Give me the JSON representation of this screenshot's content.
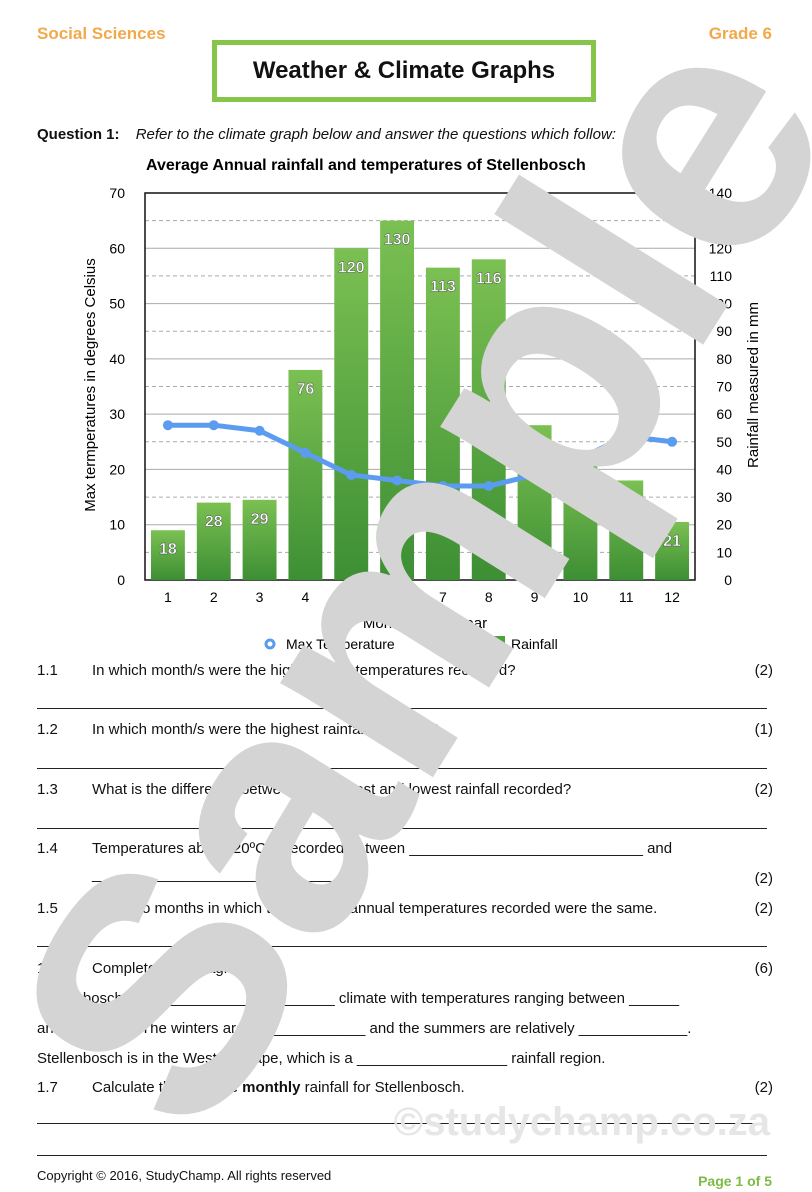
{
  "header": {
    "subject": "Social Sciences",
    "grade": "Grade 6",
    "title": "Weather & Climate Graphs"
  },
  "question1": {
    "label": "Question 1:",
    "instruction": "Refer to the climate graph below and answer the questions which follow:"
  },
  "chart_data": {
    "type": "bar+line",
    "title": "Average Annual rainfall and temperatures of Stellenbosch",
    "xlabel": "Months of the year",
    "ylabel_left": "Max termperatures  in degrees Celsius",
    "ylabel_right": "Rainfall measured in mm",
    "categories": [
      "1",
      "2",
      "3",
      "4",
      "5",
      "6",
      "7",
      "8",
      "9",
      "10",
      "11",
      "12"
    ],
    "ylim_left": [
      0,
      70
    ],
    "ylim_right": [
      0,
      140
    ],
    "left_ticks": [
      0,
      10,
      20,
      30,
      40,
      50,
      60,
      70
    ],
    "right_ticks": [
      0,
      10,
      20,
      30,
      40,
      50,
      60,
      70,
      80,
      90,
      100,
      110,
      120,
      130,
      140
    ],
    "grid": true,
    "legend_position": "bottom",
    "series": [
      {
        "name": "Max Temperature",
        "type": "line",
        "axis": "left",
        "color": "#5b9cf0",
        "values": [
          28,
          28,
          27,
          23,
          19,
          18,
          17,
          17,
          19,
          22,
          26,
          25
        ]
      },
      {
        "name": "Rainfall",
        "type": "bar",
        "axis": "right",
        "color": "#4ea23c",
        "values": [
          18,
          28,
          29,
          76,
          120,
          130,
          113,
          116,
          56,
          42,
          36,
          21
        ]
      }
    ]
  },
  "questions": [
    {
      "num": "1.1",
      "text": "In which month/s were the highest max temperatures recorded?",
      "marks": "(2)"
    },
    {
      "num": "1.2",
      "text": "In which month/s were the highest rainfall recorded?",
      "marks": "(1)"
    },
    {
      "num": "1.3",
      "text": "What is the difference between the highest and lowest rainfall recorded?",
      "marks": "(2)"
    },
    {
      "num": "1.4",
      "text": "Temperatures above 20ºC is recorded between ____________________________ and",
      "marks": "(2)",
      "cont": "______________________________"
    },
    {
      "num": "1.5",
      "text": "Give two months in which the average annual temperatures recorded were the same.",
      "marks": "(2)"
    },
    {
      "num": "1.6",
      "text": "Complete the paragraph:",
      "marks": "(6)"
    },
    {
      "num": "1.7",
      "text_pre": "Calculate the average ",
      "text_bold": "monthly",
      "text_post": " rainfall for Stellenbosch.",
      "marks": "(2)"
    }
  ],
  "paragraph": [
    "Stellenbosch has a ____________________ climate with temperatures ranging between ______",
    "and ________. The winters are ______________ and the summers are relatively _____________.",
    "Stellenbosch is in the Western Cape, which is a __________________ rainfall region."
  ],
  "watermark": {
    "text": "Sample",
    "site": "©studychamp.co.za"
  },
  "footer": {
    "copyright": "Copyright © 2016, StudyChamp. All rights reserved",
    "page": "Page 1 of 5"
  }
}
